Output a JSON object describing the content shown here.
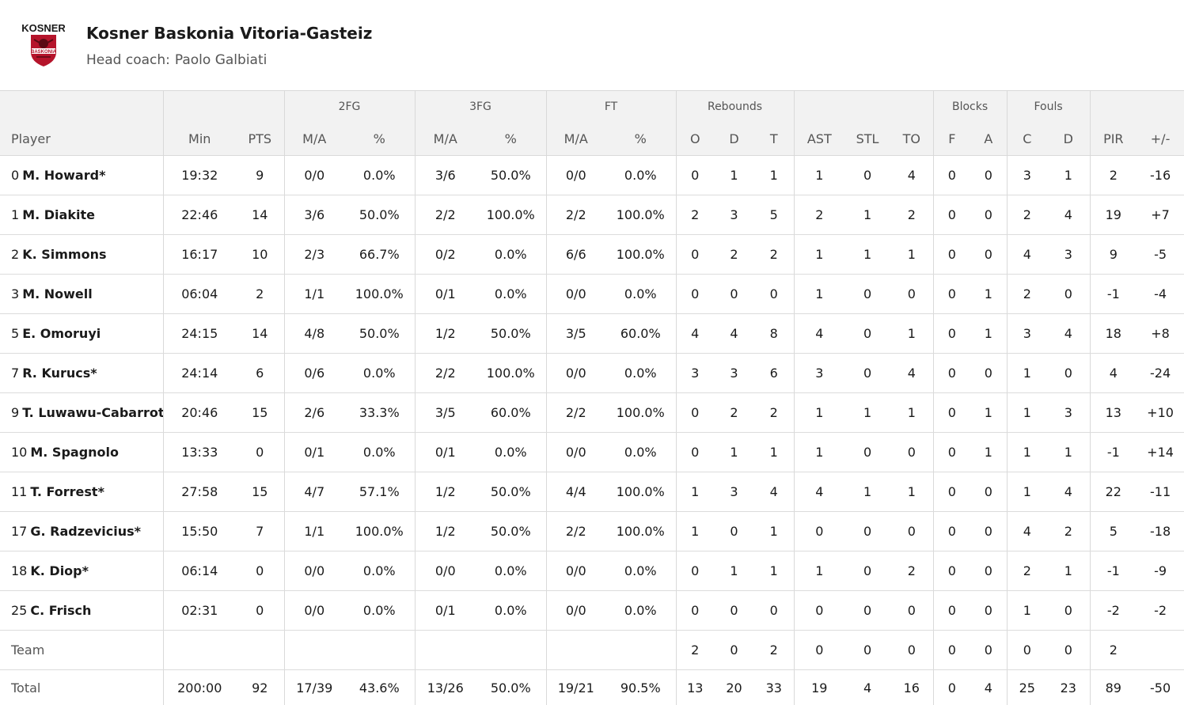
{
  "team": {
    "logo_text": "KOSNER",
    "logo_sub": "BASKONIA",
    "name": "Kosner Baskonia Vitoria-Gasteiz",
    "coach_label": "Head coach:",
    "coach_name": "Paolo Galbiati"
  },
  "groups": {
    "fg2": "2FG",
    "fg3": "3FG",
    "ft": "FT",
    "reb": "Rebounds",
    "blocks": "Blocks",
    "fouls": "Fouls"
  },
  "headers": [
    "Player",
    "Min",
    "PTS",
    "M/A",
    "%",
    "M/A",
    "%",
    "M/A",
    "%",
    "O",
    "D",
    "T",
    "AST",
    "STL",
    "TO",
    "F",
    "A",
    "C",
    "D",
    "PIR",
    "+/-"
  ],
  "players": [
    {
      "num": "0",
      "name": "M. Howard*",
      "stats": [
        "19:32",
        "9",
        "0/0",
        "0.0%",
        "3/6",
        "50.0%",
        "0/0",
        "0.0%",
        "0",
        "1",
        "1",
        "1",
        "0",
        "4",
        "0",
        "0",
        "3",
        "1",
        "2",
        "-16"
      ]
    },
    {
      "num": "1",
      "name": "M. Diakite",
      "stats": [
        "22:46",
        "14",
        "3/6",
        "50.0%",
        "2/2",
        "100.0%",
        "2/2",
        "100.0%",
        "2",
        "3",
        "5",
        "2",
        "1",
        "2",
        "0",
        "0",
        "2",
        "4",
        "19",
        "+7"
      ]
    },
    {
      "num": "2",
      "name": "K. Simmons",
      "stats": [
        "16:17",
        "10",
        "2/3",
        "66.7%",
        "0/2",
        "0.0%",
        "6/6",
        "100.0%",
        "0",
        "2",
        "2",
        "1",
        "1",
        "1",
        "0",
        "0",
        "4",
        "3",
        "9",
        "-5"
      ]
    },
    {
      "num": "3",
      "name": "M. Nowell",
      "stats": [
        "06:04",
        "2",
        "1/1",
        "100.0%",
        "0/1",
        "0.0%",
        "0/0",
        "0.0%",
        "0",
        "0",
        "0",
        "1",
        "0",
        "0",
        "0",
        "1",
        "2",
        "0",
        "-1",
        "-4"
      ]
    },
    {
      "num": "5",
      "name": "E. Omoruyi",
      "stats": [
        "24:15",
        "14",
        "4/8",
        "50.0%",
        "1/2",
        "50.0%",
        "3/5",
        "60.0%",
        "4",
        "4",
        "8",
        "4",
        "0",
        "1",
        "0",
        "1",
        "3",
        "4",
        "18",
        "+8"
      ]
    },
    {
      "num": "7",
      "name": "R. Kurucs*",
      "stats": [
        "24:14",
        "6",
        "0/6",
        "0.0%",
        "2/2",
        "100.0%",
        "0/0",
        "0.0%",
        "3",
        "3",
        "6",
        "3",
        "0",
        "4",
        "0",
        "0",
        "1",
        "0",
        "4",
        "-24"
      ]
    },
    {
      "num": "9",
      "name": "T. Luwawu-Cabarrot",
      "stats": [
        "20:46",
        "15",
        "2/6",
        "33.3%",
        "3/5",
        "60.0%",
        "2/2",
        "100.0%",
        "0",
        "2",
        "2",
        "1",
        "1",
        "1",
        "0",
        "1",
        "1",
        "3",
        "13",
        "+10"
      ]
    },
    {
      "num": "10",
      "name": "M. Spagnolo",
      "stats": [
        "13:33",
        "0",
        "0/1",
        "0.0%",
        "0/1",
        "0.0%",
        "0/0",
        "0.0%",
        "0",
        "1",
        "1",
        "1",
        "0",
        "0",
        "0",
        "1",
        "1",
        "1",
        "-1",
        "+14"
      ]
    },
    {
      "num": "11",
      "name": "T. Forrest*",
      "stats": [
        "27:58",
        "15",
        "4/7",
        "57.1%",
        "1/2",
        "50.0%",
        "4/4",
        "100.0%",
        "1",
        "3",
        "4",
        "4",
        "1",
        "1",
        "0",
        "0",
        "1",
        "4",
        "22",
        "-11"
      ]
    },
    {
      "num": "17",
      "name": "G. Radzevicius*",
      "stats": [
        "15:50",
        "7",
        "1/1",
        "100.0%",
        "1/2",
        "50.0%",
        "2/2",
        "100.0%",
        "1",
        "0",
        "1",
        "0",
        "0",
        "0",
        "0",
        "0",
        "4",
        "2",
        "5",
        "-18"
      ]
    },
    {
      "num": "18",
      "name": "K. Diop*",
      "stats": [
        "06:14",
        "0",
        "0/0",
        "0.0%",
        "0/0",
        "0.0%",
        "0/0",
        "0.0%",
        "0",
        "1",
        "1",
        "1",
        "0",
        "2",
        "0",
        "0",
        "2",
        "1",
        "-1",
        "-9"
      ]
    },
    {
      "num": "25",
      "name": "C. Frisch",
      "stats": [
        "02:31",
        "0",
        "0/0",
        "0.0%",
        "0/1",
        "0.0%",
        "0/0",
        "0.0%",
        "0",
        "0",
        "0",
        "0",
        "0",
        "0",
        "0",
        "0",
        "1",
        "0",
        "-2",
        "-2"
      ]
    }
  ],
  "team_row": {
    "label": "Team",
    "stats": [
      "",
      "",
      "",
      "",
      "",
      "",
      "",
      "",
      "2",
      "0",
      "2",
      "0",
      "0",
      "0",
      "0",
      "0",
      "0",
      "0",
      "2",
      ""
    ]
  },
  "total_row": {
    "label": "Total",
    "stats": [
      "200:00",
      "92",
      "17/39",
      "43.6%",
      "13/26",
      "50.0%",
      "19/21",
      "90.5%",
      "13",
      "20",
      "33",
      "19",
      "4",
      "16",
      "0",
      "4",
      "25",
      "23",
      "89",
      "-50"
    ]
  }
}
